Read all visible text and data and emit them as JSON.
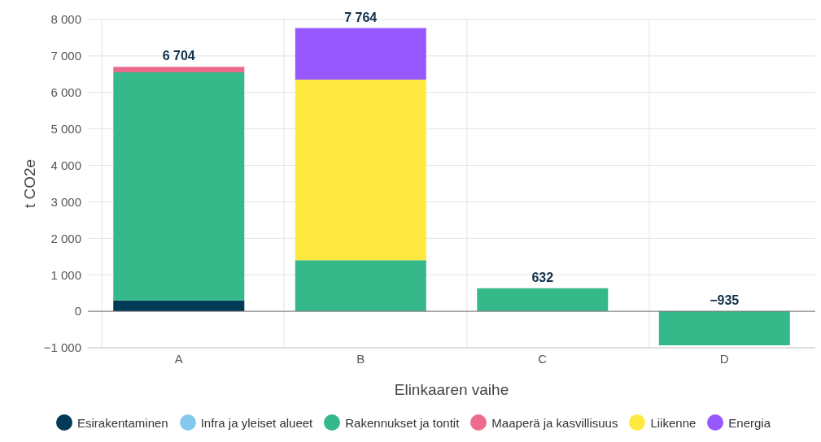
{
  "chart_data": {
    "type": "bar",
    "stacked": true,
    "xlabel": "Elinkaaren vaihe",
    "ylabel": "t CO2e",
    "categories": [
      "A",
      "B",
      "C",
      "D"
    ],
    "series": [
      {
        "name": "Esirakentaminen",
        "color": "#003a57",
        "values": [
          300,
          0,
          0,
          0
        ]
      },
      {
        "name": "Infra ja yleiset alueet",
        "color": "#86c9f0",
        "values": [
          0,
          0,
          0,
          0
        ]
      },
      {
        "name": "Rakennukset ja tontit",
        "color": "#36b98a",
        "values": [
          6254,
          1400,
          632,
          -935
        ]
      },
      {
        "name": "Maaperä ja kasvillisuus",
        "color": "#ec6b8d",
        "values": [
          150,
          0,
          0,
          0
        ]
      },
      {
        "name": "Liikenne",
        "color": "#ffe83f",
        "values": [
          0,
          4950,
          0,
          0
        ]
      },
      {
        "name": "Energia",
        "color": "#9759ff",
        "values": [
          0,
          1414,
          0,
          0
        ]
      }
    ],
    "totals": [
      "6 704",
      "7 764",
      "632",
      "−935"
    ],
    "ylim": [
      -1000,
      8000
    ],
    "yticks": [
      {
        "value": -1000,
        "label": "−1 000"
      },
      0,
      {
        "value": 1000,
        "label": "1 000"
      },
      {
        "value": 2000,
        "label": "2 000"
      },
      {
        "value": 3000,
        "label": "3 000"
      },
      {
        "value": 4000,
        "label": "4 000"
      },
      {
        "value": 5000,
        "label": "5 000"
      },
      {
        "value": 6000,
        "label": "6 000"
      },
      {
        "value": 7000,
        "label": "7 000"
      },
      {
        "value": 8000,
        "label": "8 000"
      }
    ],
    "grid": true,
    "legend": "bottom"
  }
}
